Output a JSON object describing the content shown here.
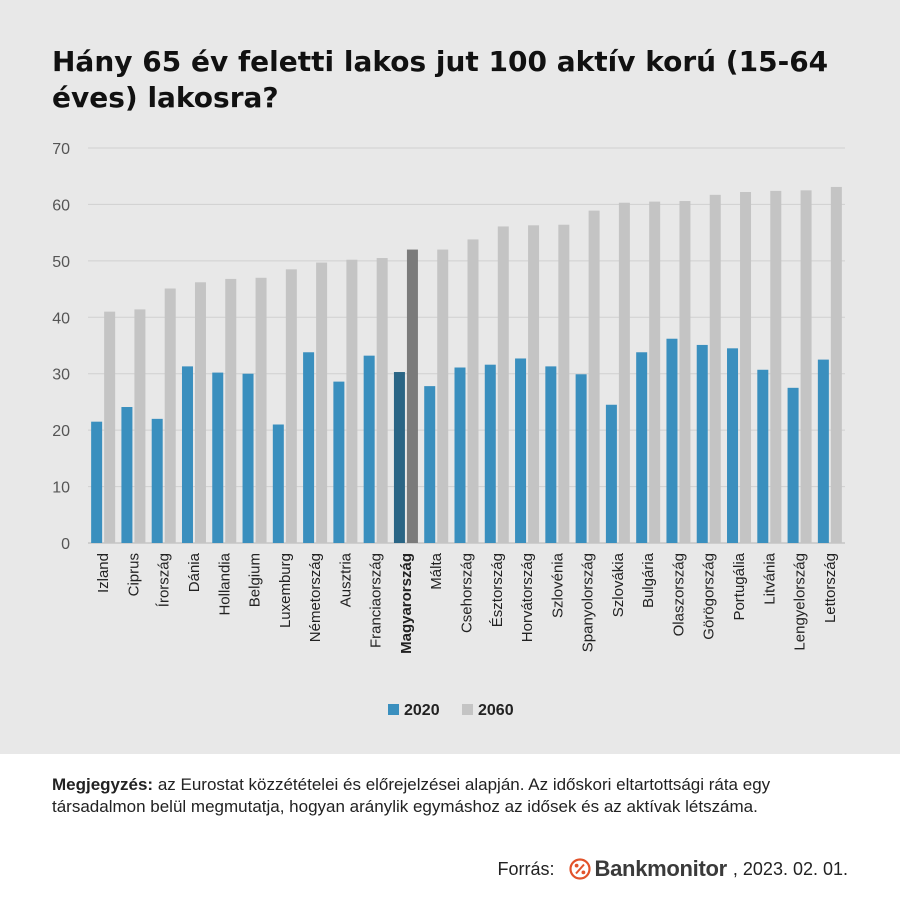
{
  "title": "Hány 65 év feletti lakos jut 100 aktív korú (15-64 éves) lakosra?",
  "note": {
    "label": "Megjegyzés:",
    "text": " az Eurostat közzétételei és előrejelzései alapján. Az időskori eltartottsági ráta egy társadalmon belül megmutatja, hogyan aránylik egymáshoz az idősek és az aktívak létszáma."
  },
  "source": {
    "label": "Forrás:",
    "brand": "Bankmonitor",
    "date": ", 2023. 02. 01."
  },
  "chart_data": {
    "type": "bar",
    "categories": [
      "Izland",
      "Ciprus",
      "Írország",
      "Dánia",
      "Hollandia",
      "Belgium",
      "Luxemburg",
      "Németország",
      "Ausztria",
      "Franciaország",
      "Magyarország",
      "Málta",
      "Csehország",
      "Észtország",
      "Horvátország",
      "Szlovénia",
      "Spanyolország",
      "Szlovákia",
      "Bulgária",
      "Olaszország",
      "Görögország",
      "Portugália",
      "Litvánia",
      "Lengyelország",
      "Lettország"
    ],
    "highlight_category": "Magyarország",
    "series": [
      {
        "name": "2020",
        "color": "#3a8fbe",
        "highlight_color": "#2a6585",
        "values": [
          21.5,
          24.1,
          22.0,
          31.3,
          30.2,
          30.0,
          21.0,
          33.8,
          28.6,
          33.2,
          30.3,
          27.8,
          31.1,
          31.6,
          32.7,
          31.3,
          29.9,
          24.5,
          33.8,
          36.2,
          35.1,
          34.5,
          30.7,
          27.5,
          32.5
        ]
      },
      {
        "name": "2060",
        "color": "#c4c4c4",
        "highlight_color": "#7b7b7b",
        "values": [
          41.0,
          41.4,
          45.1,
          46.2,
          46.8,
          47.0,
          48.5,
          49.7,
          50.2,
          50.5,
          52.0,
          52.0,
          53.8,
          56.1,
          56.3,
          56.4,
          58.9,
          60.3,
          60.5,
          60.6,
          61.7,
          62.2,
          62.4,
          62.5,
          63.1
        ]
      }
    ],
    "ylim": [
      0,
      70
    ],
    "yticks": [
      0,
      10,
      20,
      30,
      40,
      50,
      60,
      70
    ],
    "grid": true,
    "legend_position": "bottom-center"
  }
}
